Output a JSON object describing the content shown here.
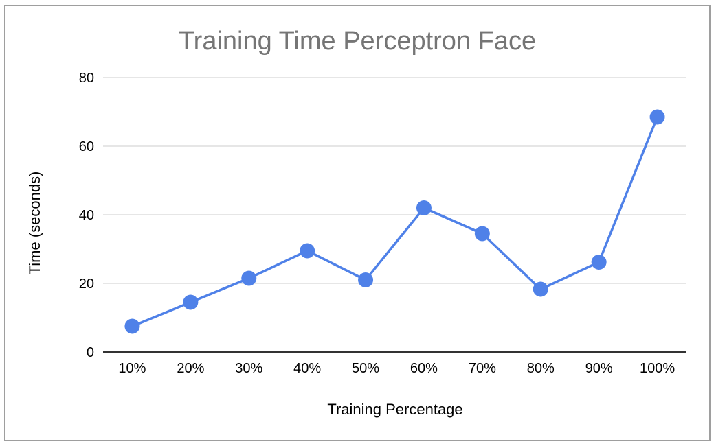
{
  "chart_data": {
    "type": "line",
    "title": "Training Time Perceptron Face",
    "xlabel": "Training Percentage",
    "ylabel": "Time (seconds)",
    "categories": [
      "10%",
      "20%",
      "30%",
      "40%",
      "50%",
      "60%",
      "70%",
      "80%",
      "90%",
      "100%"
    ],
    "series": [
      {
        "values": [
          7.5,
          14.5,
          21.5,
          29.5,
          21.0,
          42.0,
          34.5,
          18.3,
          26.2,
          68.5
        ]
      }
    ],
    "ylim": [
      0,
      80
    ],
    "yticks": [
      "0",
      "20",
      "40",
      "60",
      "80"
    ],
    "grid": true,
    "legend": "none",
    "colors": {
      "line": "#4f81e8",
      "grid": "#cccccc",
      "axis": "#333333",
      "title": "#757575",
      "border": "#9e9e9e"
    }
  }
}
